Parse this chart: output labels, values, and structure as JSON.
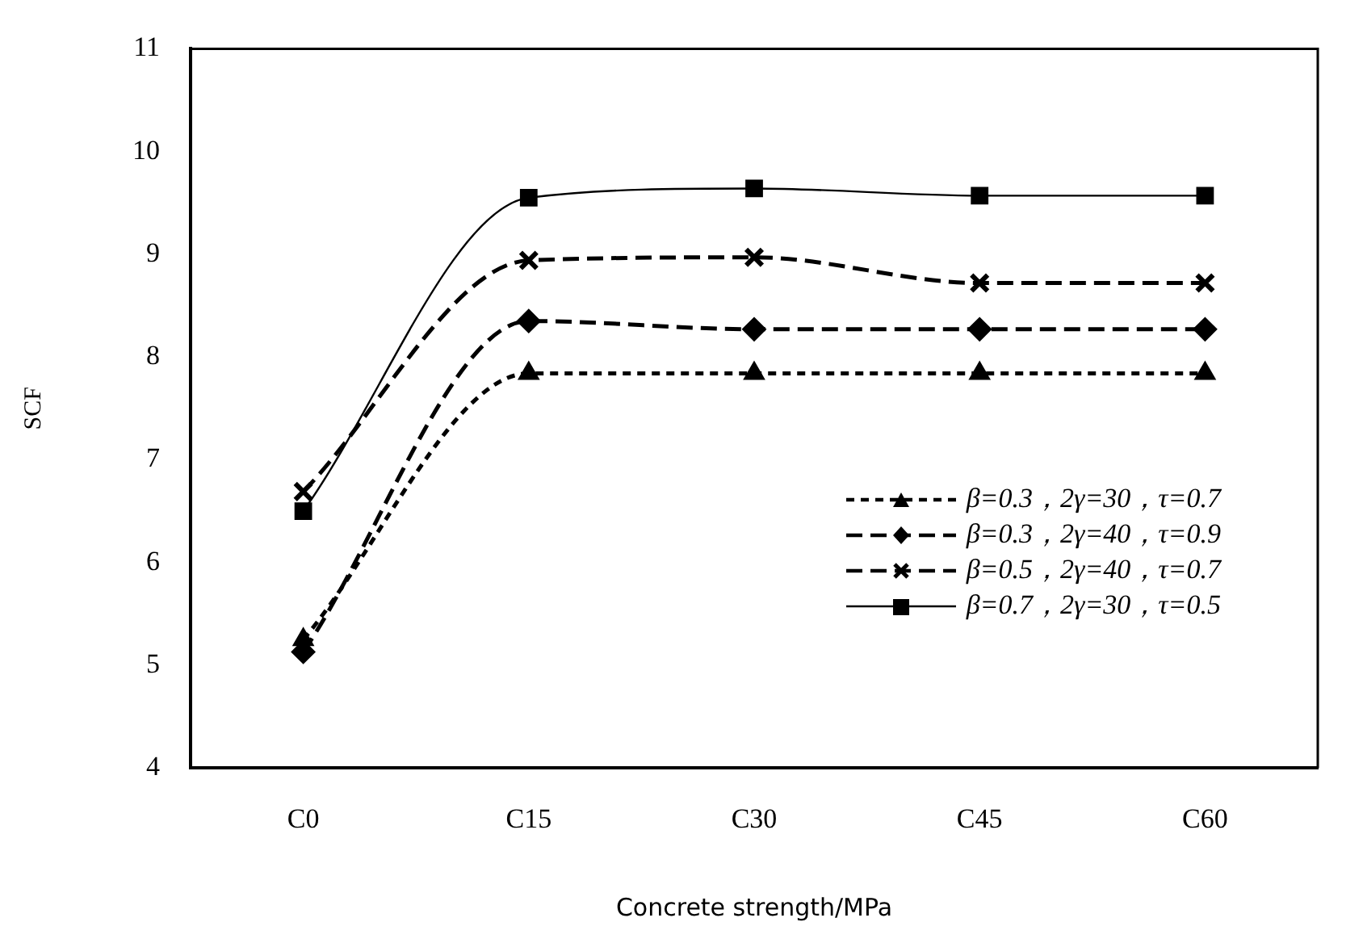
{
  "chart_data": {
    "type": "line",
    "xlabel": "Concrete strength/MPa",
    "ylabel": "SCF",
    "categories": [
      "C0",
      "C15",
      "C30",
      "C45",
      "C60"
    ],
    "series": [
      {
        "name": "β=0.3，2γ=30，τ=0.7",
        "color": "#000000",
        "values": [
          5.25,
          7.84,
          7.84,
          7.84,
          7.84
        ],
        "marker": "triangle",
        "line_style": "dotted"
      },
      {
        "name": "β=0.3，2γ=40，τ=0.9",
        "color": "#000000",
        "values": [
          5.13,
          8.35,
          8.27,
          8.27,
          8.27
        ],
        "marker": "diamond",
        "line_style": "dashed"
      },
      {
        "name": "β=0.5，2γ=40，τ=0.7",
        "color": "#000000",
        "values": [
          6.69,
          8.94,
          8.97,
          8.72,
          8.72
        ],
        "marker": "cross",
        "line_style": "dashed"
      },
      {
        "name": "β=0.7，2γ=30，τ=0.5",
        "color": "#000000",
        "values": [
          6.5,
          9.55,
          9.64,
          9.57,
          9.57
        ],
        "marker": "square",
        "line_style": "solid"
      }
    ],
    "ylim": [
      4,
      11
    ],
    "yticks": [
      4,
      5,
      6,
      7,
      8,
      9,
      10,
      11
    ],
    "grid": false,
    "legend": "right"
  }
}
